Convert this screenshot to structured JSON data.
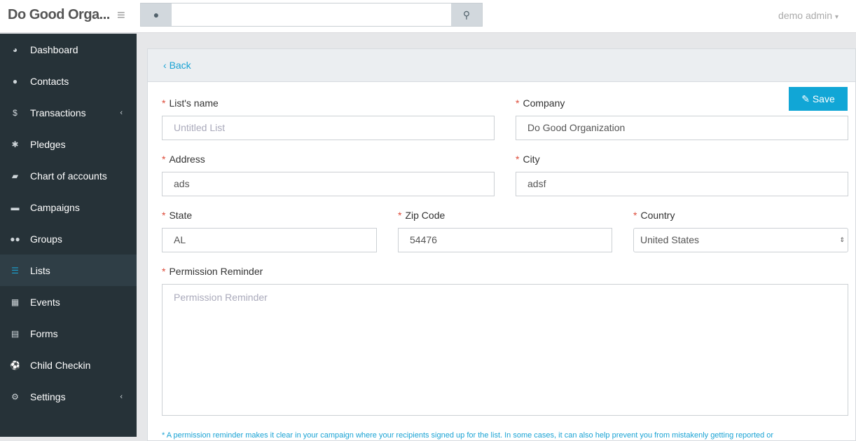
{
  "header": {
    "brand": "Do Good Orga...",
    "user": "demo admin",
    "search_value": ""
  },
  "sidebar": {
    "items": [
      {
        "label": "Dashboard",
        "icon": "dashboard-icon",
        "glyph": "◕"
      },
      {
        "label": "Contacts",
        "icon": "user-icon",
        "glyph": "●"
      },
      {
        "label": "Transactions",
        "icon": "dollar-icon",
        "glyph": "$",
        "caret": "‹"
      },
      {
        "label": "Pledges",
        "icon": "asterisk-icon",
        "glyph": "✱"
      },
      {
        "label": "Chart of accounts",
        "icon": "book-icon",
        "glyph": "▰"
      },
      {
        "label": "Campaigns",
        "icon": "briefcase-icon",
        "glyph": "▬"
      },
      {
        "label": "Groups",
        "icon": "users-icon",
        "glyph": "●●"
      },
      {
        "label": "Lists",
        "icon": "list-icon",
        "glyph": "☰",
        "active": true
      },
      {
        "label": "Events",
        "icon": "calendar-icon",
        "glyph": "▦"
      },
      {
        "label": "Forms",
        "icon": "form-icon",
        "glyph": "▤"
      },
      {
        "label": "Child Checkin",
        "icon": "soccer-ball-icon",
        "glyph": "⚽"
      },
      {
        "label": "Settings",
        "icon": "gear-icon",
        "glyph": "⚙",
        "caret": "‹"
      }
    ]
  },
  "panel": {
    "back": "Back",
    "save": "Save"
  },
  "form": {
    "list_name": {
      "label": "List's name",
      "value": "",
      "placeholder": "Untitled List"
    },
    "company": {
      "label": "Company",
      "value": "Do Good Organization"
    },
    "address": {
      "label": "Address",
      "value": "ads"
    },
    "city": {
      "label": "City",
      "value": "adsf"
    },
    "state": {
      "label": "State",
      "value": "AL"
    },
    "zip": {
      "label": "Zip Code",
      "value": "54476"
    },
    "country": {
      "label": "Country",
      "value": "United States"
    },
    "reminder": {
      "label": "Permission Reminder",
      "value": "",
      "placeholder": "Permission Reminder"
    },
    "note": "* A permission reminder makes it clear in your campaign where your recipients signed up for the list. In some cases, it can also help prevent you from mistakenly getting reported or"
  }
}
